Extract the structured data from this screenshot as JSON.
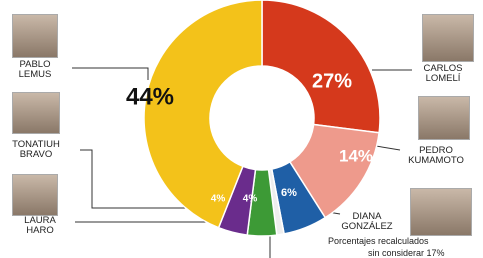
{
  "chart_data": {
    "type": "donut",
    "categories": [
      "CARLOS LOMELÍ",
      "PEDRO KUMAMOTO",
      "DIANA GONZÁLEZ",
      null,
      "LAURA HARO",
      "TONATIUH BRAVO",
      "PABLO LEMUS"
    ],
    "values": [
      27,
      14,
      6,
      1,
      4,
      4,
      44
    ],
    "value_labels": [
      "27%",
      "14%",
      "6%",
      null,
      "4%",
      "4%",
      "44%"
    ],
    "colors": [
      "#d5391c",
      "#ee9a8c",
      "#1f5fa6",
      "#eeeeee",
      "#3d9a36",
      "#6a2c8c",
      "#f3c21a"
    ],
    "note": [
      "Porcentajes recalculados",
      "sin considerar 17%"
    ]
  }
}
